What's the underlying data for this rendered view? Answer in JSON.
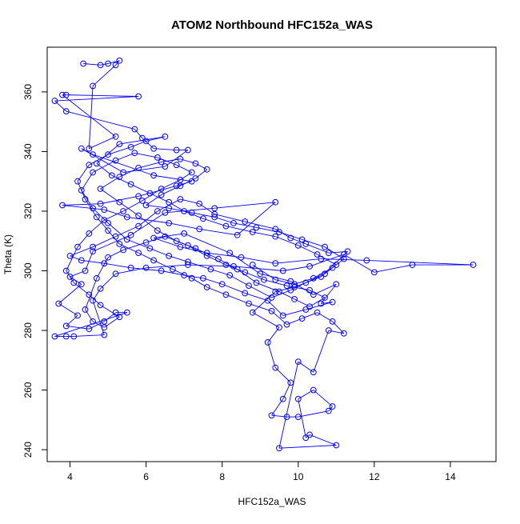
{
  "chart_data": {
    "type": "scatter",
    "title": "ATOM2 Northbound HFC152a_WAS",
    "xlabel": "HFC152a_WAS",
    "ylabel": "Theta (K)",
    "xlim": [
      3.4,
      15.2
    ],
    "ylim": [
      236,
      375
    ],
    "x_ticks": [
      4,
      6,
      8,
      10,
      12,
      14
    ],
    "y_ticks": [
      240,
      260,
      280,
      300,
      320,
      340,
      360
    ],
    "grid": false,
    "legend": "none",
    "series": [
      {
        "style": "line+open-circle",
        "color": "#0000ff",
        "points": [
          [
            4.35,
            369.5
          ],
          [
            4.8,
            369.0
          ],
          [
            5.0,
            369.5
          ],
          [
            5.3,
            370.5
          ],
          [
            5.2,
            369.0
          ],
          [
            4.6,
            362.0
          ],
          [
            4.5,
            341.0
          ],
          [
            5.2,
            345.0
          ],
          [
            3.8,
            359.0
          ],
          [
            3.9,
            359.0
          ],
          [
            5.8,
            358.5
          ],
          [
            3.6,
            357.0
          ],
          [
            3.9,
            353.5
          ],
          [
            5.7,
            347.5
          ],
          [
            5.9,
            344.5
          ],
          [
            6.2,
            341.0
          ],
          [
            6.8,
            340.5
          ],
          [
            7.1,
            340.5
          ],
          [
            6.5,
            335.0
          ],
          [
            5.4,
            333.0
          ],
          [
            4.3,
            341.0
          ],
          [
            4.6,
            339.0
          ],
          [
            6.2,
            332.0
          ],
          [
            7.2,
            330.0
          ],
          [
            6.8,
            328.5
          ],
          [
            5.8,
            325.0
          ],
          [
            4.8,
            322.5
          ],
          [
            3.8,
            322.0
          ],
          [
            4.9,
            320.5
          ],
          [
            5.5,
            318.0
          ],
          [
            6.6,
            316.0
          ],
          [
            7.4,
            314.0
          ],
          [
            8.4,
            312.0
          ],
          [
            9.4,
            323.0
          ],
          [
            7.8,
            321.0
          ],
          [
            6.5,
            319.5
          ],
          [
            5.6,
            312.0
          ],
          [
            4.6,
            306.5
          ],
          [
            4.4,
            300.0
          ],
          [
            4.0,
            298.0
          ],
          [
            4.3,
            295.5
          ],
          [
            3.7,
            289.0
          ],
          [
            4.2,
            285.0
          ],
          [
            3.9,
            281.5
          ],
          [
            4.5,
            280.5
          ],
          [
            4.9,
            283.0
          ],
          [
            5.2,
            286.0
          ],
          [
            5.5,
            286.0
          ],
          [
            3.6,
            278.0
          ],
          [
            3.9,
            278.0
          ],
          [
            4.1,
            278.0
          ],
          [
            4.9,
            278.5
          ],
          [
            4.6,
            290.0
          ],
          [
            4.8,
            294.0
          ],
          [
            5.2,
            299.0
          ],
          [
            6.0,
            301.0
          ],
          [
            7.1,
            302.0
          ],
          [
            8.3,
            301.5
          ],
          [
            9.6,
            300.0
          ],
          [
            10.3,
            301.5
          ],
          [
            11.2,
            305.5
          ],
          [
            12.0,
            299.5
          ],
          [
            13.0,
            302.0
          ],
          [
            14.6,
            302.0
          ],
          [
            11.8,
            303.5
          ],
          [
            10.6,
            304.0
          ],
          [
            9.4,
            302.5
          ],
          [
            8.5,
            304.5
          ],
          [
            7.6,
            306.0
          ],
          [
            6.9,
            308.0
          ],
          [
            6.2,
            311.0
          ],
          [
            7.0,
            312.5
          ],
          [
            8.2,
            306.0
          ],
          [
            9.0,
            299.0
          ],
          [
            9.8,
            296.5
          ],
          [
            10.4,
            292.0
          ],
          [
            11.0,
            295.5
          ],
          [
            10.6,
            289.0
          ],
          [
            10.9,
            289.5
          ],
          [
            10.2,
            287.0
          ],
          [
            9.6,
            285.0
          ],
          [
            9.2,
            290.0
          ],
          [
            8.6,
            292.5
          ],
          [
            8.0,
            295.5
          ],
          [
            7.5,
            297.5
          ],
          [
            7.0,
            298.5
          ],
          [
            6.4,
            300.0
          ],
          [
            5.6,
            301.0
          ],
          [
            4.9,
            302.5
          ],
          [
            4.3,
            303.5
          ],
          [
            4.0,
            305.0
          ],
          [
            4.6,
            308.0
          ],
          [
            5.2,
            311.5
          ],
          [
            5.8,
            315.0
          ],
          [
            6.3,
            320.0
          ],
          [
            6.9,
            324.0
          ],
          [
            7.4,
            322.5
          ],
          [
            7.8,
            319.0
          ],
          [
            8.6,
            316.5
          ],
          [
            9.4,
            314.0
          ],
          [
            9.8,
            311.0
          ],
          [
            10.2,
            309.0
          ],
          [
            10.8,
            306.0
          ],
          [
            11.3,
            306.5
          ],
          [
            10.6,
            298.0
          ],
          [
            9.9,
            294.5
          ],
          [
            9.4,
            293.0
          ],
          [
            8.8,
            286.0
          ],
          [
            9.5,
            281.0
          ],
          [
            9.2,
            276.0
          ],
          [
            9.4,
            267.5
          ],
          [
            9.8,
            262.5
          ],
          [
            9.6,
            257.0
          ],
          [
            9.3,
            251.5
          ],
          [
            9.7,
            251.0
          ],
          [
            10.0,
            251.0
          ],
          [
            10.8,
            253.0
          ],
          [
            10.9,
            254.5
          ],
          [
            10.4,
            260.0
          ],
          [
            10.0,
            257.0
          ],
          [
            10.2,
            244.0
          ],
          [
            10.3,
            245.0
          ],
          [
            11.0,
            241.5
          ],
          [
            9.5,
            240.5
          ],
          [
            10.0,
            269.5
          ],
          [
            10.4,
            266.0
          ],
          [
            10.8,
            280.0
          ],
          [
            11.2,
            279.0
          ],
          [
            10.9,
            283.0
          ],
          [
            10.5,
            286.0
          ],
          [
            10.1,
            284.0
          ],
          [
            9.7,
            282.0
          ],
          [
            9.3,
            286.5
          ],
          [
            8.7,
            289.0
          ],
          [
            8.1,
            292.0
          ],
          [
            7.6,
            294.5
          ],
          [
            7.2,
            297.5
          ],
          [
            6.7,
            300.5
          ],
          [
            6.2,
            303.5
          ],
          [
            5.8,
            306.0
          ],
          [
            5.3,
            309.0
          ],
          [
            5.0,
            313.5
          ],
          [
            4.7,
            318.0
          ],
          [
            4.4,
            324.0
          ],
          [
            4.2,
            330.0
          ],
          [
            4.5,
            335.5
          ],
          [
            5.0,
            339.0
          ],
          [
            5.6,
            341.5
          ],
          [
            6.0,
            343.5
          ],
          [
            6.5,
            345.0
          ],
          [
            5.3,
            342.5
          ],
          [
            4.7,
            336.0
          ],
          [
            5.1,
            332.0
          ],
          [
            5.6,
            329.0
          ],
          [
            6.1,
            326.0
          ],
          [
            6.6,
            323.0
          ],
          [
            7.0,
            320.0
          ],
          [
            7.5,
            317.5
          ],
          [
            8.1,
            315.0
          ],
          [
            8.8,
            313.0
          ],
          [
            9.4,
            311.5
          ],
          [
            10.0,
            308.5
          ],
          [
            10.5,
            305.5
          ],
          [
            11.0,
            302.0
          ],
          [
            10.7,
            299.0
          ],
          [
            10.2,
            296.0
          ],
          [
            9.8,
            293.5
          ],
          [
            9.3,
            291.0
          ],
          [
            8.7,
            295.0
          ],
          [
            8.2,
            298.5
          ],
          [
            7.7,
            300.5
          ],
          [
            7.1,
            303.0
          ],
          [
            6.6,
            305.0
          ],
          [
            6.1,
            307.5
          ],
          [
            5.5,
            310.5
          ],
          [
            5.0,
            316.0
          ],
          [
            4.6,
            321.0
          ],
          [
            4.3,
            327.0
          ],
          [
            4.6,
            333.0
          ],
          [
            5.2,
            337.0
          ],
          [
            5.7,
            339.5
          ],
          [
            6.3,
            338.0
          ],
          [
            6.8,
            335.5
          ],
          [
            7.2,
            333.0
          ],
          [
            6.9,
            330.5
          ],
          [
            6.4,
            327.5
          ],
          [
            5.9,
            323.5
          ],
          [
            5.4,
            320.0
          ],
          [
            4.9,
            317.0
          ],
          [
            4.5,
            312.5
          ],
          [
            4.2,
            308.0
          ],
          [
            3.9,
            300.0
          ],
          [
            4.1,
            296.0
          ],
          [
            4.5,
            292.0
          ],
          [
            4.8,
            288.5
          ],
          [
            5.3,
            284.5
          ],
          [
            4.9,
            281.0
          ],
          [
            4.6,
            283.0
          ],
          [
            4.4,
            287.0
          ],
          [
            4.7,
            297.5
          ],
          [
            5.0,
            304.5
          ],
          [
            5.4,
            307.0
          ],
          [
            6.0,
            309.5
          ],
          [
            6.5,
            311.5
          ],
          [
            7.1,
            308.5
          ],
          [
            7.6,
            305.0
          ],
          [
            8.1,
            302.0
          ],
          [
            8.6,
            299.5
          ],
          [
            9.1,
            297.0
          ],
          [
            9.7,
            295.0
          ],
          [
            10.3,
            293.5
          ],
          [
            10.7,
            291.0
          ],
          [
            10.3,
            288.0
          ],
          [
            9.9,
            290.5
          ],
          [
            9.5,
            293.0
          ],
          [
            8.9,
            296.0
          ],
          [
            8.4,
            300.5
          ],
          [
            7.9,
            304.0
          ],
          [
            7.3,
            307.5
          ],
          [
            6.8,
            310.0
          ],
          [
            6.3,
            313.5
          ],
          [
            5.8,
            318.5
          ],
          [
            5.3,
            323.0
          ],
          [
            4.8,
            327.5
          ],
          [
            5.3,
            331.5
          ],
          [
            5.8,
            334.5
          ],
          [
            6.4,
            336.5
          ],
          [
            6.9,
            337.5
          ],
          [
            7.3,
            336.0
          ],
          [
            7.6,
            334.0
          ],
          [
            7.3,
            331.0
          ],
          [
            6.9,
            328.5
          ],
          [
            6.4,
            325.5
          ],
          [
            6.0,
            322.0
          ],
          [
            6.6,
            321.0
          ],
          [
            7.2,
            319.5
          ],
          [
            7.8,
            318.0
          ],
          [
            8.3,
            316.0
          ],
          [
            8.9,
            314.5
          ],
          [
            9.5,
            313.0
          ],
          [
            10.1,
            310.5
          ],
          [
            10.7,
            308.0
          ],
          [
            11.2,
            304.0
          ],
          [
            10.9,
            301.0
          ],
          [
            10.4,
            297.5
          ],
          [
            9.9,
            295.5
          ],
          [
            9.4,
            297.0
          ],
          [
            8.8,
            302.0
          ]
        ]
      }
    ]
  }
}
